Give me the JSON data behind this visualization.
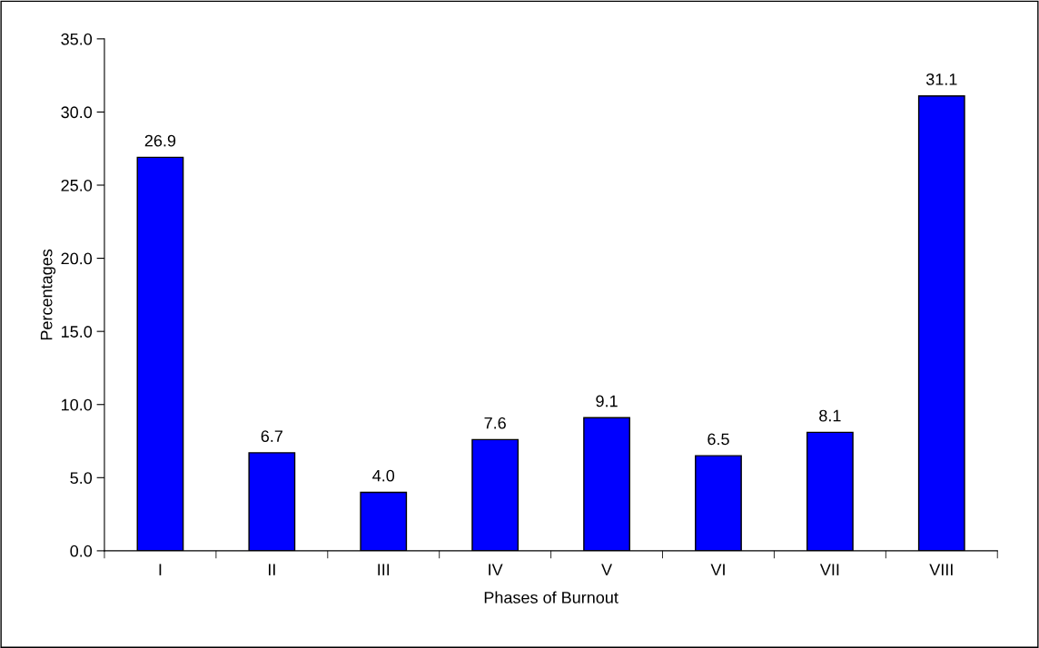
{
  "chart_data": {
    "type": "bar",
    "xlabel": "Phases of Burnout",
    "ylabel": "Percentages",
    "categories": [
      "I",
      "II",
      "III",
      "IV",
      "V",
      "VI",
      "VII",
      "VIII"
    ],
    "values": [
      26.9,
      6.7,
      4.0,
      7.6,
      9.1,
      6.5,
      8.1,
      31.1
    ],
    "color": "#0000ff",
    "ylim": [
      0,
      35
    ],
    "yticks": [
      {
        "value": 0,
        "label": "0.0"
      },
      {
        "value": 5,
        "label": "5.0"
      },
      {
        "value": 10,
        "label": "10.0"
      },
      {
        "value": 15,
        "label": "15.0"
      },
      {
        "value": 20,
        "label": "20.0"
      },
      {
        "value": 25,
        "label": "25.0"
      },
      {
        "value": 30,
        "label": "30.0"
      },
      {
        "value": 35,
        "label": "35.0"
      }
    ],
    "value_labels": [
      "26.9",
      "6.7",
      "4.0",
      "7.6",
      "9.1",
      "6.5",
      "8.1",
      "31.1"
    ],
    "grid": false,
    "legend": false
  }
}
